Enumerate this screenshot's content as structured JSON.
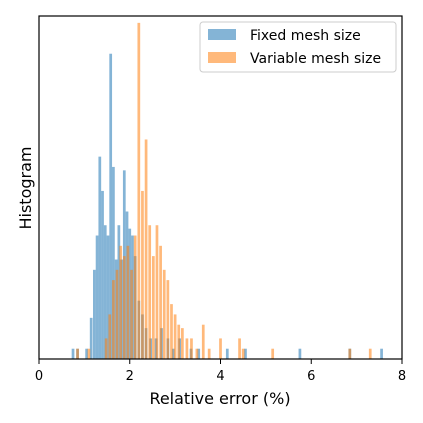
{
  "chart_data": {
    "type": "histogram",
    "xlabel": "Relative error (%)",
    "ylabel": "Histogram",
    "xlim": [
      0,
      8
    ],
    "ylim": [
      0,
      1
    ],
    "x_ticks": [
      "0",
      "2",
      "4",
      "6",
      "8"
    ],
    "y_ticks_visible": false,
    "grid": false,
    "legend_position": "top-right",
    "series": [
      {
        "name": "Fixed mesh size",
        "color": "#1f77b4",
        "bins": [
          {
            "x": 0.75,
            "y": 0.03
          },
          {
            "x": 0.85,
            "y": 0.03
          },
          {
            "x": 1.05,
            "y": 0.03
          },
          {
            "x": 1.15,
            "y": 0.12
          },
          {
            "x": 1.22,
            "y": 0.26
          },
          {
            "x": 1.28,
            "y": 0.36
          },
          {
            "x": 1.34,
            "y": 0.59
          },
          {
            "x": 1.4,
            "y": 0.49
          },
          {
            "x": 1.46,
            "y": 0.39
          },
          {
            "x": 1.52,
            "y": 0.36
          },
          {
            "x": 1.58,
            "y": 0.89
          },
          {
            "x": 1.64,
            "y": 0.56
          },
          {
            "x": 1.7,
            "y": 0.29
          },
          {
            "x": 1.76,
            "y": 0.39
          },
          {
            "x": 1.82,
            "y": 0.29
          },
          {
            "x": 1.88,
            "y": 0.55
          },
          {
            "x": 1.94,
            "y": 0.43
          },
          {
            "x": 2.0,
            "y": 0.38
          },
          {
            "x": 2.06,
            "y": 0.36
          },
          {
            "x": 2.12,
            "y": 0.3
          },
          {
            "x": 2.2,
            "y": 0.17
          },
          {
            "x": 2.28,
            "y": 0.13
          },
          {
            "x": 2.36,
            "y": 0.09
          },
          {
            "x": 2.46,
            "y": 0.06
          },
          {
            "x": 2.58,
            "y": 0.06
          },
          {
            "x": 2.7,
            "y": 0.09
          },
          {
            "x": 2.84,
            "y": 0.06
          },
          {
            "x": 2.96,
            "y": 0.03
          },
          {
            "x": 3.1,
            "y": 0.06
          },
          {
            "x": 3.35,
            "y": 0.03
          },
          {
            "x": 3.52,
            "y": 0.03
          },
          {
            "x": 4.15,
            "y": 0.03
          },
          {
            "x": 4.55,
            "y": 0.03
          },
          {
            "x": 5.75,
            "y": 0.03
          },
          {
            "x": 6.85,
            "y": 0.03
          },
          {
            "x": 7.55,
            "y": 0.03
          }
        ]
      },
      {
        "name": "Variable mesh size",
        "color": "#ff7f0e",
        "bins": [
          {
            "x": 0.85,
            "y": 0.03
          },
          {
            "x": 1.1,
            "y": 0.03
          },
          {
            "x": 1.48,
            "y": 0.06
          },
          {
            "x": 1.56,
            "y": 0.13
          },
          {
            "x": 1.64,
            "y": 0.23
          },
          {
            "x": 1.72,
            "y": 0.26
          },
          {
            "x": 1.8,
            "y": 0.33
          },
          {
            "x": 1.88,
            "y": 0.3
          },
          {
            "x": 1.96,
            "y": 0.33
          },
          {
            "x": 2.04,
            "y": 0.26
          },
          {
            "x": 2.12,
            "y": 0.36
          },
          {
            "x": 2.2,
            "y": 0.98
          },
          {
            "x": 2.28,
            "y": 0.49
          },
          {
            "x": 2.36,
            "y": 0.64
          },
          {
            "x": 2.44,
            "y": 0.39
          },
          {
            "x": 2.52,
            "y": 0.3
          },
          {
            "x": 2.6,
            "y": 0.39
          },
          {
            "x": 2.68,
            "y": 0.33
          },
          {
            "x": 2.76,
            "y": 0.26
          },
          {
            "x": 2.84,
            "y": 0.23
          },
          {
            "x": 2.92,
            "y": 0.16
          },
          {
            "x": 3.0,
            "y": 0.13
          },
          {
            "x": 3.08,
            "y": 0.1
          },
          {
            "x": 3.16,
            "y": 0.09
          },
          {
            "x": 3.26,
            "y": 0.06
          },
          {
            "x": 3.36,
            "y": 0.06
          },
          {
            "x": 3.48,
            "y": 0.03
          },
          {
            "x": 3.62,
            "y": 0.1
          },
          {
            "x": 3.75,
            "y": 0.03
          },
          {
            "x": 4.0,
            "y": 0.06
          },
          {
            "x": 4.42,
            "y": 0.06
          },
          {
            "x": 4.5,
            "y": 0.03
          },
          {
            "x": 5.15,
            "y": 0.03
          },
          {
            "x": 6.85,
            "y": 0.03
          },
          {
            "x": 7.3,
            "y": 0.03
          }
        ]
      }
    ]
  }
}
